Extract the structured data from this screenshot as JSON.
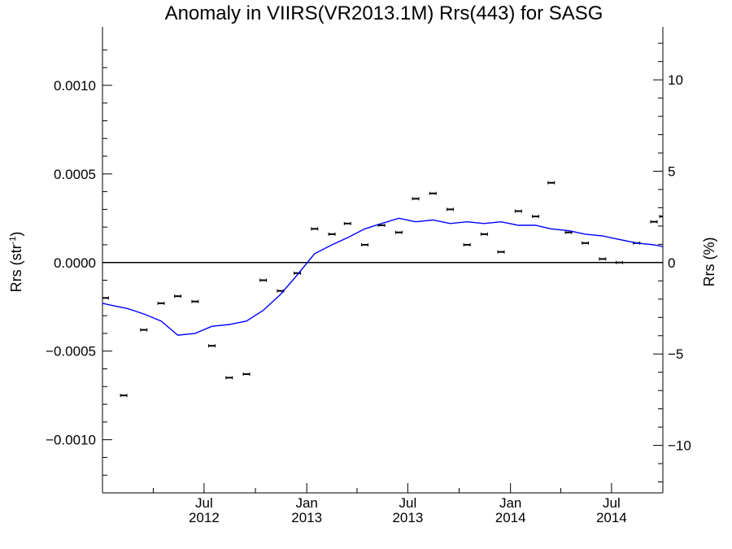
{
  "chart_data": {
    "type": "line",
    "title": "Anomaly in VIIRS(VR2013.1M) Rrs(443) for SASG",
    "ylabel_left": "Rrs (str",
    "ylabel_left_sup": "-1",
    "ylabel_left_close": ")",
    "ylabel_right": "Rrs (%)",
    "xlim": [
      "2012-01-01",
      "2014-10-01"
    ],
    "ylim": [
      -0.0013,
      0.00133
    ],
    "ylim_right": [
      -12.6,
      12.9
    ],
    "grid": false,
    "x_ticks": [
      {
        "date": "2012-07-01",
        "month": "Jul",
        "year": "2012"
      },
      {
        "date": "2013-01-01",
        "month": "Jan",
        "year": "2013"
      },
      {
        "date": "2013-07-01",
        "month": "Jul",
        "year": "2013"
      },
      {
        "date": "2014-01-01",
        "month": "Jan",
        "year": "2014"
      },
      {
        "date": "2014-07-01",
        "month": "Jul",
        "year": "2014"
      }
    ],
    "y_ticks_left": [
      {
        "value": -0.001,
        "label": "−0.0010"
      },
      {
        "value": -0.0005,
        "label": "−0.0005"
      },
      {
        "value": 0.0,
        "label": "0.0000"
      },
      {
        "value": 0.0005,
        "label": "0.0005"
      },
      {
        "value": 0.001,
        "label": "0.0010"
      }
    ],
    "y_ticks_right": [
      {
        "value": -10,
        "label": "−10"
      },
      {
        "value": -5,
        "label": "−5"
      },
      {
        "value": 0,
        "label": "0"
      },
      {
        "value": 5,
        "label": "5"
      },
      {
        "value": 10,
        "label": "10"
      }
    ],
    "series": [
      {
        "kind": "points",
        "color": "#000000",
        "x": [
          "2012-01-06",
          "2012-02-08",
          "2012-03-15",
          "2012-04-15",
          "2012-05-15",
          "2012-06-15",
          "2012-07-15",
          "2012-08-15",
          "2012-09-15",
          "2012-10-15",
          "2012-11-15",
          "2012-12-15",
          "2013-01-15",
          "2013-02-15",
          "2013-03-15",
          "2013-04-15",
          "2013-05-15",
          "2013-06-15",
          "2013-07-15",
          "2013-08-15",
          "2013-09-15",
          "2013-10-15",
          "2013-11-15",
          "2013-12-15",
          "2014-01-15",
          "2014-02-15",
          "2014-03-15",
          "2014-04-15",
          "2014-05-15",
          "2014-06-15",
          "2014-07-15",
          "2014-08-15",
          "2014-09-15",
          "2014-10-01"
        ],
        "values": [
          -0.0002,
          -0.00075,
          -0.00038,
          -0.00023,
          -0.00019,
          -0.00022,
          -0.00047,
          -0.00065,
          -0.00063,
          -0.0001,
          -0.00016,
          -6e-05,
          0.00019,
          0.00016,
          0.00022,
          0.0001,
          0.00021,
          0.00017,
          0.00036,
          0.00039,
          0.0003,
          0.0001,
          0.00016,
          6e-05,
          0.00029,
          0.00026,
          0.00045,
          0.00017,
          0.00011,
          2e-05,
          0.0,
          0.00011,
          0.00023,
          0.00026
        ]
      },
      {
        "kind": "line",
        "color": "#0000ff",
        "x": [
          "2012-01-01",
          "2012-01-15",
          "2012-02-15",
          "2012-03-15",
          "2012-04-15",
          "2012-05-15",
          "2012-06-15",
          "2012-07-15",
          "2012-08-15",
          "2012-09-15",
          "2012-10-15",
          "2012-11-15",
          "2012-12-15",
          "2013-01-15",
          "2013-02-15",
          "2013-03-15",
          "2013-04-15",
          "2013-05-15",
          "2013-06-15",
          "2013-07-15",
          "2013-08-15",
          "2013-09-15",
          "2013-10-15",
          "2013-11-15",
          "2013-12-15",
          "2014-01-15",
          "2014-02-15",
          "2014-03-15",
          "2014-04-15",
          "2014-05-15",
          "2014-06-15",
          "2014-07-15",
          "2014-08-15",
          "2014-09-15",
          "2014-10-01"
        ],
        "values": [
          -0.00023,
          -0.00024,
          -0.00026,
          -0.00029,
          -0.00033,
          -0.00041,
          -0.0004,
          -0.00036,
          -0.00035,
          -0.00033,
          -0.00027,
          -0.00018,
          -7e-05,
          5e-05,
          0.0001,
          0.00014,
          0.00019,
          0.00022,
          0.00025,
          0.00023,
          0.00024,
          0.00022,
          0.00023,
          0.00022,
          0.00023,
          0.00021,
          0.00021,
          0.00019,
          0.00018,
          0.00016,
          0.00015,
          0.00013,
          0.00011,
          0.0001,
          9e-05
        ]
      }
    ],
    "zero_line": 0
  }
}
